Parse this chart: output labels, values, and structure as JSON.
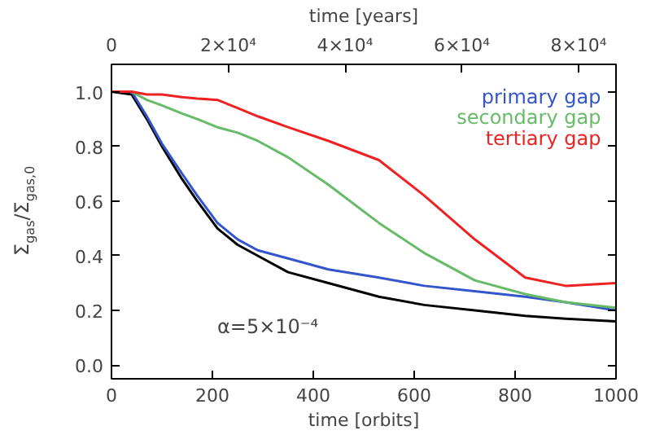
{
  "chart_data": {
    "type": "line",
    "xlabel": "time [orbits]",
    "ylabel": "Σ$_{gas}$/Σ$_{gas,0}$",
    "x2label": "time [years]",
    "xlim": [
      0,
      1000
    ],
    "xticks": [
      0,
      200,
      400,
      600,
      800,
      1000
    ],
    "x2lim": [
      0,
      86400
    ],
    "x2ticks": [
      0,
      {
        "value": 20000,
        "label": "2×10⁴"
      },
      {
        "value": 40000,
        "label": "4×10⁴"
      },
      {
        "value": 60000,
        "label": "6×10⁴"
      },
      {
        "value": 80000,
        "label": "8×10⁴"
      }
    ],
    "ylim": [
      -0.05,
      1.1
    ],
    "yticks": [
      {
        "value": 0,
        "label": "0.0"
      },
      0.2,
      0.4,
      0.6,
      0.8,
      {
        "value": 1,
        "label": "1.0"
      }
    ],
    "grid": false,
    "legend": "top right",
    "line_style": "solid",
    "marker": "none",
    "x": [
      0,
      40,
      70,
      100,
      140,
      170,
      210,
      250,
      290,
      350,
      430,
      530,
      620,
      720,
      820,
      900,
      1000
    ],
    "series": [
      {
        "color": "#000000",
        "values": [
          1.0,
          0.99,
          0.9,
          0.8,
          0.68,
          0.6,
          0.5,
          0.44,
          0.4,
          0.34,
          0.3,
          0.25,
          0.22,
          0.2,
          0.18,
          0.17,
          0.16
        ]
      },
      {
        "name": "primary gap",
        "color": "#3355cc",
        "values": [
          1.0,
          1.0,
          0.91,
          0.81,
          0.7,
          0.62,
          0.52,
          0.46,
          0.42,
          0.39,
          0.35,
          0.32,
          0.29,
          0.27,
          0.25,
          0.23,
          0.2
        ]
      },
      {
        "name": "secondary gap",
        "color": "#66bb66",
        "values": [
          1.0,
          1.0,
          0.97,
          0.95,
          0.92,
          0.9,
          0.87,
          0.85,
          0.82,
          0.76,
          0.66,
          0.52,
          0.41,
          0.31,
          0.26,
          0.23,
          0.21
        ]
      },
      {
        "name": "tertiary gap",
        "color": "#ee2222",
        "values": [
          1.0,
          1.0,
          0.99,
          0.99,
          0.98,
          0.975,
          0.97,
          0.94,
          0.91,
          0.87,
          0.82,
          0.75,
          0.62,
          0.46,
          0.32,
          0.29,
          0.3
        ]
      }
    ],
    "annotations": [
      "α=5×10⁻⁴"
    ]
  }
}
